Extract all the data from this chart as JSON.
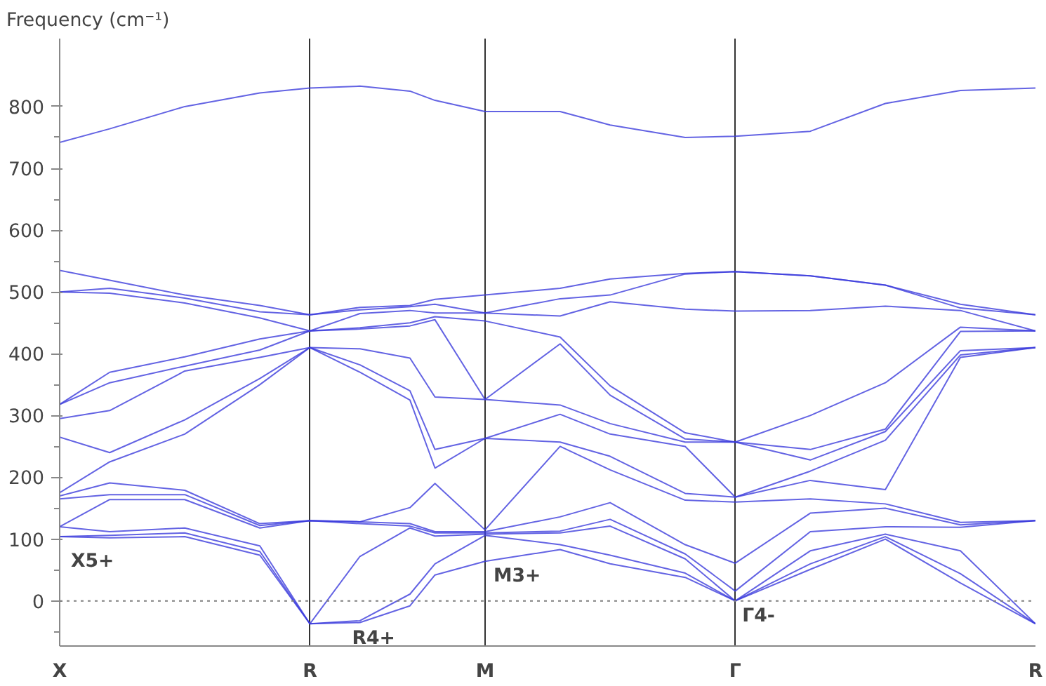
{
  "chart_data": {
    "type": "line",
    "ylabel": "Frequency (cm⁻¹)",
    "categories": [
      "X",
      null,
      null,
      null,
      null,
      null,
      null,
      null,
      null,
      null,
      "R",
      null,
      null,
      null,
      null,
      null,
      null,
      "M",
      null,
      null,
      null,
      null,
      null,
      null,
      null,
      null,
      null,
      "Γ",
      null,
      null,
      null,
      null,
      null,
      null,
      null,
      null,
      null,
      null,
      null,
      "R"
    ],
    "ylim": [
      -73,
      910
    ],
    "yticks": [
      0,
      100,
      200,
      300,
      400,
      500,
      600,
      700,
      800
    ],
    "grid": "x",
    "ref_lines": [
      {
        "axis": "y",
        "value": 0,
        "color": "#808080",
        "line_style": "dotted"
      }
    ],
    "annotations": [
      "X5+",
      "R4+",
      "M3+",
      "Γ4-"
    ],
    "series": [
      {
        "color": "#3c3cdc",
        "values": [
          104,
          null,
          102,
          null,
          null,
          104,
          null,
          null,
          74,
          null,
          -37,
          null,
          -35,
          null,
          -8,
          42,
          null,
          64,
          null,
          null,
          83,
          null,
          60,
          null,
          null,
          38,
          null,
          0,
          null,
          null,
          51,
          null,
          null,
          100,
          null,
          null,
          29,
          null,
          null,
          -37
        ]
      },
      {
        "color": "#3c3cdc",
        "values": [
          104,
          null,
          106,
          null,
          null,
          110,
          null,
          null,
          80,
          null,
          -37,
          null,
          -32,
          null,
          11,
          60,
          null,
          106,
          null,
          null,
          91,
          null,
          74,
          null,
          null,
          45,
          null,
          0,
          null,
          null,
          60,
          null,
          null,
          104,
          null,
          null,
          44,
          null,
          null,
          -37
        ]
      },
      {
        "color": "#3c3cdc",
        "values": [
          120,
          null,
          112,
          null,
          null,
          118,
          null,
          null,
          89,
          null,
          -37,
          null,
          72,
          null,
          118,
          105,
          null,
          108,
          null,
          null,
          110,
          null,
          121,
          null,
          null,
          68,
          null,
          0,
          null,
          null,
          81,
          null,
          null,
          108,
          null,
          null,
          81,
          null,
          null,
          -37
        ]
      },
      {
        "color": "#3c3cdc",
        "values": [
          120,
          null,
          164,
          null,
          null,
          164,
          null,
          null,
          118,
          null,
          130,
          null,
          125,
          null,
          121,
          110,
          null,
          110,
          null,
          null,
          113,
          null,
          132,
          null,
          null,
          76,
          null,
          16,
          null,
          null,
          112,
          null,
          null,
          120,
          null,
          null,
          119,
          null,
          null,
          130
        ]
      },
      {
        "color": "#3c3cdc",
        "values": [
          165,
          null,
          172,
          null,
          null,
          172,
          null,
          null,
          122,
          null,
          130,
          null,
          128,
          null,
          125,
          112,
          null,
          112,
          null,
          null,
          136,
          null,
          159,
          null,
          null,
          91,
          null,
          61,
          null,
          null,
          142,
          null,
          null,
          150,
          null,
          null,
          123,
          null,
          null,
          130
        ]
      },
      {
        "color": "#3c3cdc",
        "values": [
          170,
          null,
          191,
          null,
          null,
          179,
          null,
          null,
          125,
          null,
          130,
          null,
          128,
          null,
          151,
          190,
          null,
          115,
          null,
          null,
          250,
          null,
          212,
          null,
          null,
          163,
          null,
          160,
          null,
          null,
          165,
          null,
          null,
          157,
          null,
          null,
          127,
          null,
          null,
          130
        ]
      },
      {
        "color": "#3c3cdc",
        "values": [
          175,
          null,
          225,
          null,
          null,
          270,
          null,
          null,
          350,
          null,
          410,
          null,
          370,
          null,
          325,
          215,
          null,
          263,
          null,
          null,
          257,
          null,
          234,
          null,
          null,
          174,
          null,
          168,
          null,
          null,
          195,
          null,
          null,
          180,
          null,
          null,
          394,
          null,
          null,
          410
        ]
      },
      {
        "color": "#3c3cdc",
        "values": [
          265,
          null,
          240,
          null,
          null,
          293,
          null,
          null,
          360,
          null,
          410,
          null,
          382,
          null,
          340,
          245,
          null,
          263,
          null,
          null,
          302,
          null,
          270,
          null,
          null,
          250,
          null,
          168,
          null,
          null,
          210,
          null,
          null,
          260,
          null,
          null,
          398,
          null,
          null,
          410
        ]
      },
      {
        "color": "#3c3cdc",
        "values": [
          295,
          null,
          308,
          null,
          null,
          372,
          null,
          null,
          394,
          null,
          410,
          null,
          408,
          null,
          393,
          330,
          null,
          326,
          null,
          null,
          317,
          null,
          287,
          null,
          null,
          257,
          null,
          257,
          null,
          null,
          228,
          null,
          null,
          274,
          null,
          null,
          405,
          null,
          null,
          410
        ]
      },
      {
        "color": "#3c3cdc",
        "values": [
          318,
          null,
          353,
          null,
          null,
          380,
          null,
          null,
          406,
          null,
          437,
          null,
          440,
          null,
          445,
          455,
          null,
          326,
          null,
          null,
          416,
          null,
          333,
          null,
          null,
          262,
          null,
          257,
          null,
          null,
          245,
          null,
          null,
          278,
          null,
          null,
          436,
          null,
          null,
          437
        ]
      },
      {
        "color": "#3c3cdc",
        "values": [
          318,
          null,
          370,
          null,
          null,
          395,
          null,
          null,
          424,
          null,
          437,
          null,
          442,
          null,
          450,
          460,
          null,
          453,
          null,
          null,
          427,
          null,
          348,
          null,
          null,
          272,
          null,
          257,
          null,
          null,
          300,
          null,
          null,
          353,
          null,
          null,
          443,
          null,
          null,
          437
        ]
      },
      {
        "color": "#3c3cdc",
        "values": [
          500,
          null,
          498,
          null,
          null,
          482,
          null,
          null,
          458,
          null,
          437,
          null,
          465,
          null,
          470,
          466,
          null,
          466,
          null,
          null,
          461,
          null,
          484,
          null,
          null,
          472,
          null,
          469,
          null,
          null,
          470,
          null,
          null,
          477,
          null,
          null,
          470,
          null,
          null,
          437
        ]
      },
      {
        "color": "#3c3cdc",
        "values": [
          500,
          null,
          506,
          null,
          null,
          490,
          null,
          null,
          468,
          null,
          463,
          null,
          471,
          null,
          476,
          480,
          null,
          466,
          null,
          null,
          489,
          null,
          495,
          null,
          null,
          529,
          null,
          533,
          null,
          null,
          526,
          null,
          null,
          511,
          null,
          null,
          474,
          null,
          null,
          463
        ]
      },
      {
        "color": "#3c3cdc",
        "values": [
          535,
          null,
          519,
          null,
          null,
          495,
          null,
          null,
          478,
          null,
          463,
          null,
          475,
          null,
          478,
          488,
          null,
          495,
          null,
          null,
          506,
          null,
          521,
          null,
          null,
          530,
          null,
          533,
          null,
          null,
          526,
          null,
          null,
          511,
          null,
          null,
          480,
          null,
          null,
          463
        ]
      },
      {
        "color": "#3c3cdc",
        "values": [
          742,
          null,
          764,
          null,
          null,
          800,
          null,
          null,
          822,
          null,
          830,
          null,
          833,
          null,
          825,
          810,
          null,
          792,
          null,
          null,
          792,
          null,
          770,
          null,
          null,
          750,
          null,
          752,
          null,
          null,
          760,
          null,
          null,
          805,
          null,
          null,
          826,
          null,
          null,
          830
        ]
      }
    ]
  }
}
